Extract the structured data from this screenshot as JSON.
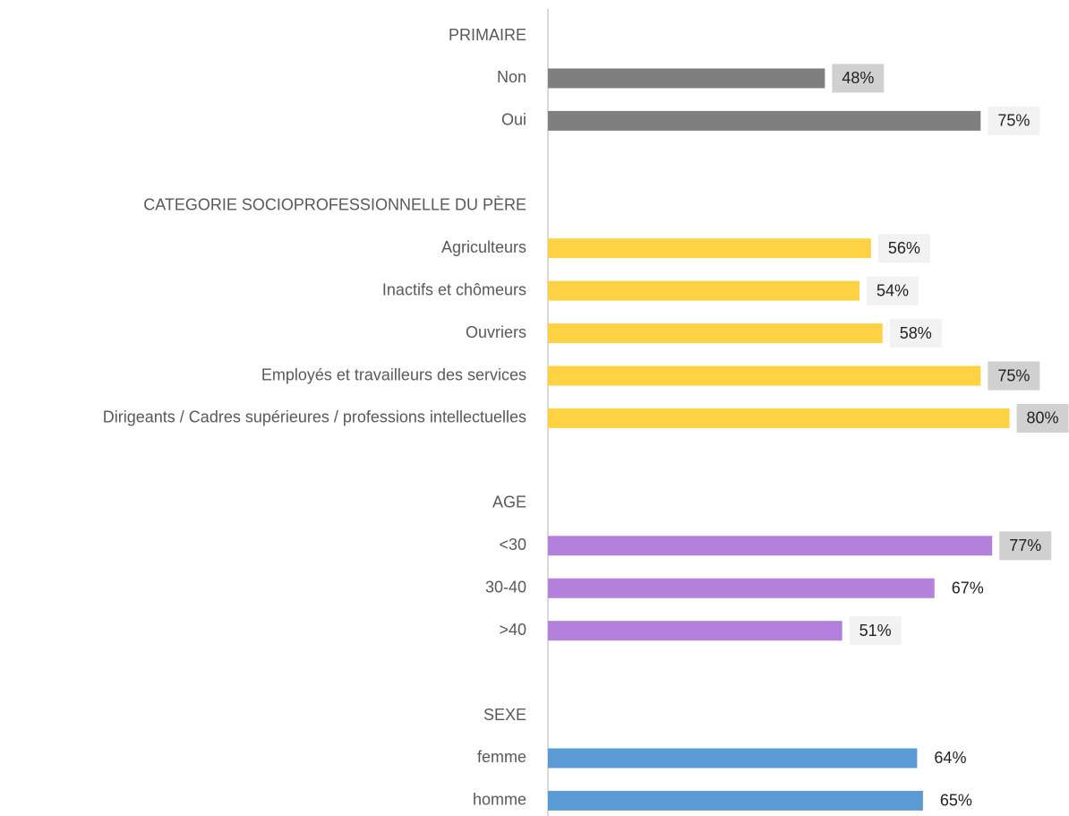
{
  "chart_data": {
    "type": "hbar",
    "categories": [
      "PRIMAIRE",
      "Non",
      "Oui",
      null,
      "CATEGORIE SOCIOPROFESSIONNELLE DU PÈRE",
      "Agriculteurs",
      "Inactifs et chômeurs",
      "Ouvriers",
      "Employés et travailleurs des services",
      "Dirigeants / Cadres supérieures / professions intellectuelles",
      null,
      "AGE",
      "<30",
      "30-40",
      ">40",
      null,
      "SEXE",
      "femme",
      "homme"
    ],
    "values": [
      null,
      48,
      75,
      null,
      null,
      56,
      54,
      58,
      75,
      80,
      null,
      null,
      77,
      67,
      51,
      null,
      null,
      64,
      65
    ],
    "value_labels": [
      null,
      "48%",
      "75%",
      null,
      null,
      "56%",
      "54%",
      "58%",
      "75%",
      "80%",
      null,
      null,
      "77%",
      "67%",
      "51%",
      null,
      null,
      "64%",
      "65%"
    ],
    "colors": [
      null,
      "#7f7f7f",
      "#7f7f7f",
      null,
      null,
      "#ffd243",
      "#ffd243",
      "#ffd243",
      "#ffd243",
      "#ffd243",
      null,
      null,
      "#b381dc",
      "#b381dc",
      "#b381dc",
      null,
      null,
      "#5b9bd5",
      "#5b9bd5"
    ],
    "label_backgrounds": [
      null,
      "#d0d0d0",
      "#f2f2f2",
      null,
      null,
      "#f2f2f2",
      "#f2f2f2",
      "#f2f2f2",
      "#d0d0d0",
      "#d0d0d0",
      null,
      null,
      "#d0d0d0",
      "#ffffff",
      "#f2f2f2",
      null,
      null,
      "#ffffff",
      "#ffffff"
    ],
    "xlim": [
      0,
      90
    ]
  }
}
